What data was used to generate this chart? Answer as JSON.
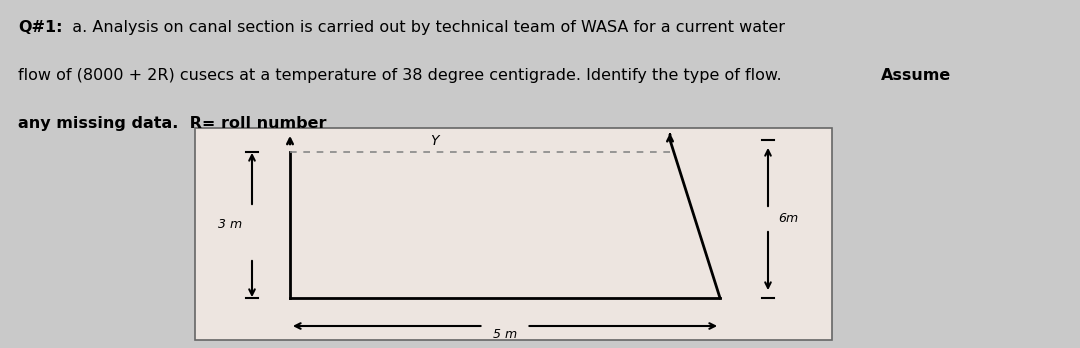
{
  "bg_color": "#c9c9c9",
  "diagram_bg": "#ede5e0",
  "line1_bold": "Q#1:",
  "line1_normal": "  a. Analysis on canal section is carried out by technical team of WASA for a current water",
  "line2_normal": "flow of (8000 + 2R) cusecs at a temperature of 38 degree centigrade. Identify the type of flow. ",
  "line2_bold": "Assume",
  "line3_bold": "any missing data.  R= roll number",
  "left_wall_label": "3 m",
  "right_wall_label": "6m",
  "bottom_label": "5 m",
  "water_label": "Y",
  "font_size": 11.5
}
